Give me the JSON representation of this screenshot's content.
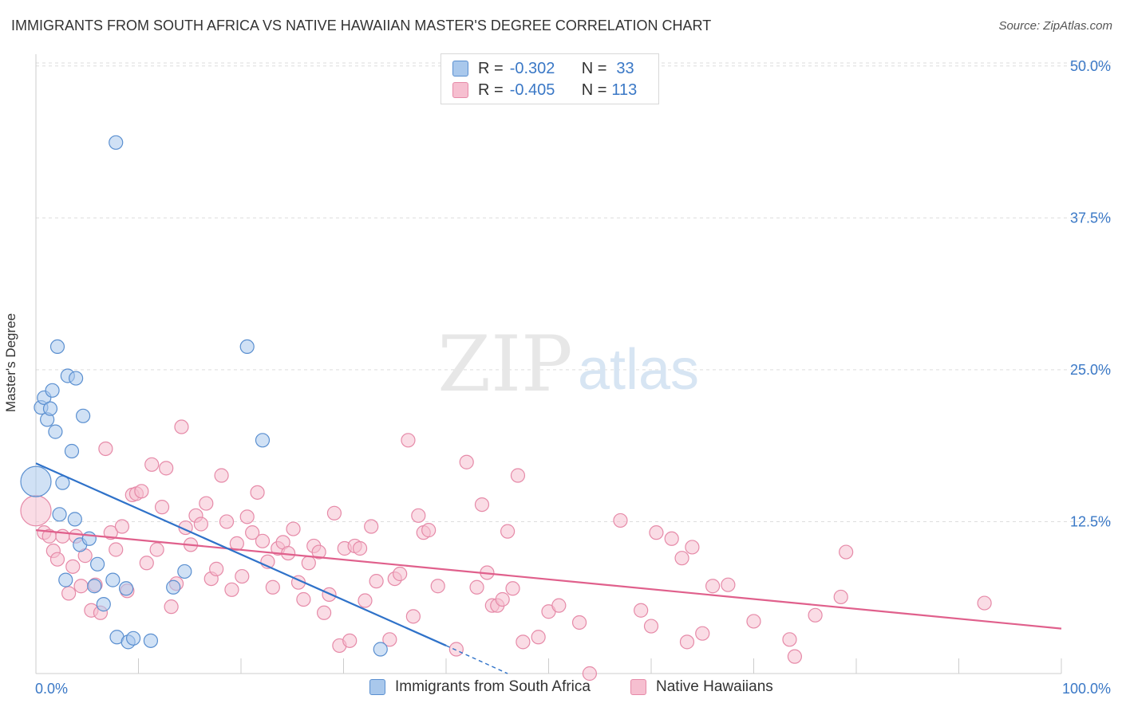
{
  "header": {
    "title": "IMMIGRANTS FROM SOUTH AFRICA VS NATIVE HAWAIIAN MASTER'S DEGREE CORRELATION CHART",
    "source": "Source: ZipAtlas.com"
  },
  "watermark": {
    "zip": "ZIP",
    "atlas": "atlas"
  },
  "legend": {
    "series1": {
      "r_label": "R =",
      "r_value": "-0.302",
      "n_label": "N =",
      "n_value": "33",
      "name": "Immigrants from South Africa"
    },
    "series2": {
      "r_label": "R =",
      "r_value": "-0.405",
      "n_label": "N =",
      "n_value": "113",
      "name": "Native Hawaiians"
    }
  },
  "colors": {
    "blue_fill": "#a9c8ec",
    "blue_stroke": "#5a8fd0",
    "blue_line": "#2f72c9",
    "pink_fill": "#f6bfd0",
    "pink_stroke": "#e68aa8",
    "pink_line": "#e0608c",
    "tick_label": "#3a78c6",
    "grid": "#dddddd",
    "axis": "#cccccc"
  },
  "chart_data": {
    "type": "scatter",
    "title": "IMMIGRANTS FROM SOUTH AFRICA VS NATIVE HAWAIIAN MASTER'S DEGREE CORRELATION CHART",
    "xlabel": "",
    "ylabel": "Master's Degree",
    "xlim": [
      0,
      100
    ],
    "ylim": [
      0,
      52
    ],
    "x_tick_labels": [
      "0.0%",
      "100.0%"
    ],
    "y_ticks": [
      12.5,
      25,
      37.5,
      50
    ],
    "y_tick_labels": [
      "12.5%",
      "25.0%",
      "37.5%",
      "50.0%"
    ],
    "grid": true,
    "legend_position": "top-center",
    "series": [
      {
        "name": "Immigrants from South Africa",
        "r": -0.302,
        "n": 33,
        "trend": {
          "x": [
            0,
            40
          ],
          "y": [
            17.3,
            2.3
          ],
          "dashed_to": [
            46,
            0.0
          ]
        },
        "points": [
          {
            "x": 0.0,
            "y": 15.8,
            "size": "large"
          },
          {
            "x": 0.5,
            "y": 21.9
          },
          {
            "x": 0.8,
            "y": 22.7
          },
          {
            "x": 1.1,
            "y": 20.9
          },
          {
            "x": 1.4,
            "y": 21.8
          },
          {
            "x": 1.6,
            "y": 23.3
          },
          {
            "x": 1.9,
            "y": 19.9
          },
          {
            "x": 2.1,
            "y": 26.9
          },
          {
            "x": 2.3,
            "y": 13.1
          },
          {
            "x": 2.6,
            "y": 15.7
          },
          {
            "x": 2.9,
            "y": 7.7
          },
          {
            "x": 3.1,
            "y": 24.5
          },
          {
            "x": 3.5,
            "y": 18.3
          },
          {
            "x": 3.8,
            "y": 12.7
          },
          {
            "x": 3.9,
            "y": 24.3
          },
          {
            "x": 4.3,
            "y": 10.6
          },
          {
            "x": 4.6,
            "y": 21.2
          },
          {
            "x": 5.2,
            "y": 11.1
          },
          {
            "x": 5.7,
            "y": 7.2
          },
          {
            "x": 6.0,
            "y": 9.0
          },
          {
            "x": 6.6,
            "y": 5.7
          },
          {
            "x": 7.5,
            "y": 7.7
          },
          {
            "x": 7.8,
            "y": 43.7
          },
          {
            "x": 7.9,
            "y": 3.0
          },
          {
            "x": 8.8,
            "y": 7.0
          },
          {
            "x": 9.0,
            "y": 2.6
          },
          {
            "x": 9.5,
            "y": 2.9
          },
          {
            "x": 11.2,
            "y": 2.7
          },
          {
            "x": 13.4,
            "y": 7.1
          },
          {
            "x": 14.5,
            "y": 8.4
          },
          {
            "x": 20.6,
            "y": 26.9
          },
          {
            "x": 22.1,
            "y": 19.2
          },
          {
            "x": 33.6,
            "y": 2.0
          }
        ]
      },
      {
        "name": "Native Hawaiians",
        "r": -0.405,
        "n": 113,
        "trend": {
          "x": [
            0,
            100
          ],
          "y": [
            11.8,
            3.7
          ]
        },
        "points": [
          {
            "x": 0.0,
            "y": 13.4,
            "size": "large"
          },
          {
            "x": 0.8,
            "y": 11.6
          },
          {
            "x": 1.3,
            "y": 11.3
          },
          {
            "x": 1.7,
            "y": 10.1
          },
          {
            "x": 2.1,
            "y": 9.4
          },
          {
            "x": 2.6,
            "y": 11.3
          },
          {
            "x": 3.2,
            "y": 6.6
          },
          {
            "x": 3.6,
            "y": 8.8
          },
          {
            "x": 3.9,
            "y": 11.3
          },
          {
            "x": 4.4,
            "y": 7.2
          },
          {
            "x": 4.8,
            "y": 9.7
          },
          {
            "x": 5.4,
            "y": 5.2
          },
          {
            "x": 5.8,
            "y": 7.3
          },
          {
            "x": 6.3,
            "y": 5.0
          },
          {
            "x": 6.8,
            "y": 18.5
          },
          {
            "x": 7.3,
            "y": 11.6
          },
          {
            "x": 7.8,
            "y": 10.2
          },
          {
            "x": 8.4,
            "y": 12.1
          },
          {
            "x": 8.9,
            "y": 6.8
          },
          {
            "x": 9.4,
            "y": 14.7
          },
          {
            "x": 9.8,
            "y": 14.8
          },
          {
            "x": 10.3,
            "y": 15.0
          },
          {
            "x": 10.8,
            "y": 9.1
          },
          {
            "x": 11.3,
            "y": 17.2
          },
          {
            "x": 11.8,
            "y": 10.2
          },
          {
            "x": 12.3,
            "y": 13.7
          },
          {
            "x": 12.7,
            "y": 16.9
          },
          {
            "x": 13.2,
            "y": 5.5
          },
          {
            "x": 13.7,
            "y": 7.4
          },
          {
            "x": 14.2,
            "y": 20.3
          },
          {
            "x": 14.6,
            "y": 12.0
          },
          {
            "x": 15.1,
            "y": 10.6
          },
          {
            "x": 15.6,
            "y": 13.0
          },
          {
            "x": 16.1,
            "y": 12.3
          },
          {
            "x": 16.6,
            "y": 14.0
          },
          {
            "x": 17.1,
            "y": 7.8
          },
          {
            "x": 17.6,
            "y": 8.6
          },
          {
            "x": 18.1,
            "y": 16.3
          },
          {
            "x": 18.6,
            "y": 12.5
          },
          {
            "x": 19.1,
            "y": 6.9
          },
          {
            "x": 19.6,
            "y": 10.7
          },
          {
            "x": 20.1,
            "y": 8.0
          },
          {
            "x": 20.6,
            "y": 12.9
          },
          {
            "x": 21.1,
            "y": 11.6
          },
          {
            "x": 21.6,
            "y": 14.9
          },
          {
            "x": 22.1,
            "y": 10.9
          },
          {
            "x": 22.6,
            "y": 9.2
          },
          {
            "x": 23.1,
            "y": 7.1
          },
          {
            "x": 23.6,
            "y": 10.3
          },
          {
            "x": 24.1,
            "y": 10.8
          },
          {
            "x": 24.6,
            "y": 9.9
          },
          {
            "x": 25.1,
            "y": 11.9
          },
          {
            "x": 25.6,
            "y": 7.5
          },
          {
            "x": 26.1,
            "y": 6.1
          },
          {
            "x": 26.6,
            "y": 9.1
          },
          {
            "x": 27.1,
            "y": 10.5
          },
          {
            "x": 27.6,
            "y": 10.0
          },
          {
            "x": 28.1,
            "y": 5.0
          },
          {
            "x": 28.6,
            "y": 6.5
          },
          {
            "x": 29.1,
            "y": 13.2
          },
          {
            "x": 29.6,
            "y": 2.3
          },
          {
            "x": 30.1,
            "y": 10.3
          },
          {
            "x": 30.6,
            "y": 2.7
          },
          {
            "x": 31.1,
            "y": 10.5
          },
          {
            "x": 31.6,
            "y": 10.3
          },
          {
            "x": 32.1,
            "y": 6.0
          },
          {
            "x": 32.7,
            "y": 12.1
          },
          {
            "x": 33.2,
            "y": 7.6
          },
          {
            "x": 34.5,
            "y": 2.8
          },
          {
            "x": 35.0,
            "y": 7.8
          },
          {
            "x": 35.5,
            "y": 8.2
          },
          {
            "x": 36.3,
            "y": 19.2
          },
          {
            "x": 36.8,
            "y": 4.7
          },
          {
            "x": 37.3,
            "y": 13.0
          },
          {
            "x": 37.8,
            "y": 11.6
          },
          {
            "x": 38.3,
            "y": 11.8
          },
          {
            "x": 39.2,
            "y": 7.2
          },
          {
            "x": 41.0,
            "y": 2.0
          },
          {
            "x": 42.0,
            "y": 17.4
          },
          {
            "x": 43.0,
            "y": 7.1
          },
          {
            "x": 43.5,
            "y": 13.9
          },
          {
            "x": 44.0,
            "y": 8.3
          },
          {
            "x": 44.5,
            "y": 5.6
          },
          {
            "x": 45.0,
            "y": 5.6
          },
          {
            "x": 45.5,
            "y": 6.1
          },
          {
            "x": 46.0,
            "y": 11.7
          },
          {
            "x": 46.5,
            "y": 7.0
          },
          {
            "x": 47.0,
            "y": 16.3
          },
          {
            "x": 47.5,
            "y": 2.6
          },
          {
            "x": 49.0,
            "y": 3.0
          },
          {
            "x": 50.0,
            "y": 5.1
          },
          {
            "x": 51.0,
            "y": 5.6
          },
          {
            "x": 53.0,
            "y": 4.2
          },
          {
            "x": 54.0,
            "y": 0.0
          },
          {
            "x": 57.0,
            "y": 12.6
          },
          {
            "x": 59.0,
            "y": 5.2
          },
          {
            "x": 60.0,
            "y": 3.9
          },
          {
            "x": 60.5,
            "y": 11.6
          },
          {
            "x": 62.0,
            "y": 11.1
          },
          {
            "x": 63.0,
            "y": 9.5
          },
          {
            "x": 63.5,
            "y": 2.6
          },
          {
            "x": 64.0,
            "y": 10.4
          },
          {
            "x": 65.0,
            "y": 3.3
          },
          {
            "x": 66.0,
            "y": 7.2
          },
          {
            "x": 67.5,
            "y": 7.3
          },
          {
            "x": 70.0,
            "y": 4.3
          },
          {
            "x": 73.5,
            "y": 2.8
          },
          {
            "x": 74.0,
            "y": 1.4
          },
          {
            "x": 76.0,
            "y": 4.8
          },
          {
            "x": 78.5,
            "y": 6.3
          },
          {
            "x": 79.0,
            "y": 10.0
          },
          {
            "x": 92.5,
            "y": 5.8
          }
        ]
      }
    ]
  }
}
